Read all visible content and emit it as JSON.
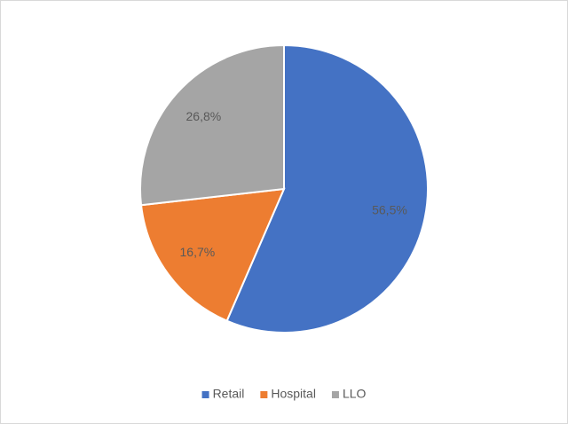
{
  "chart_data": {
    "type": "pie",
    "categories": [
      "Retail",
      "Hospital",
      "LLO"
    ],
    "values": [
      56.5,
      16.7,
      26.8
    ],
    "value_labels": [
      "56,5%",
      "16,7%",
      "26,8%"
    ],
    "colors": [
      "#4472c4",
      "#ed7d31",
      "#a5a5a5"
    ],
    "legend": "bottom"
  }
}
